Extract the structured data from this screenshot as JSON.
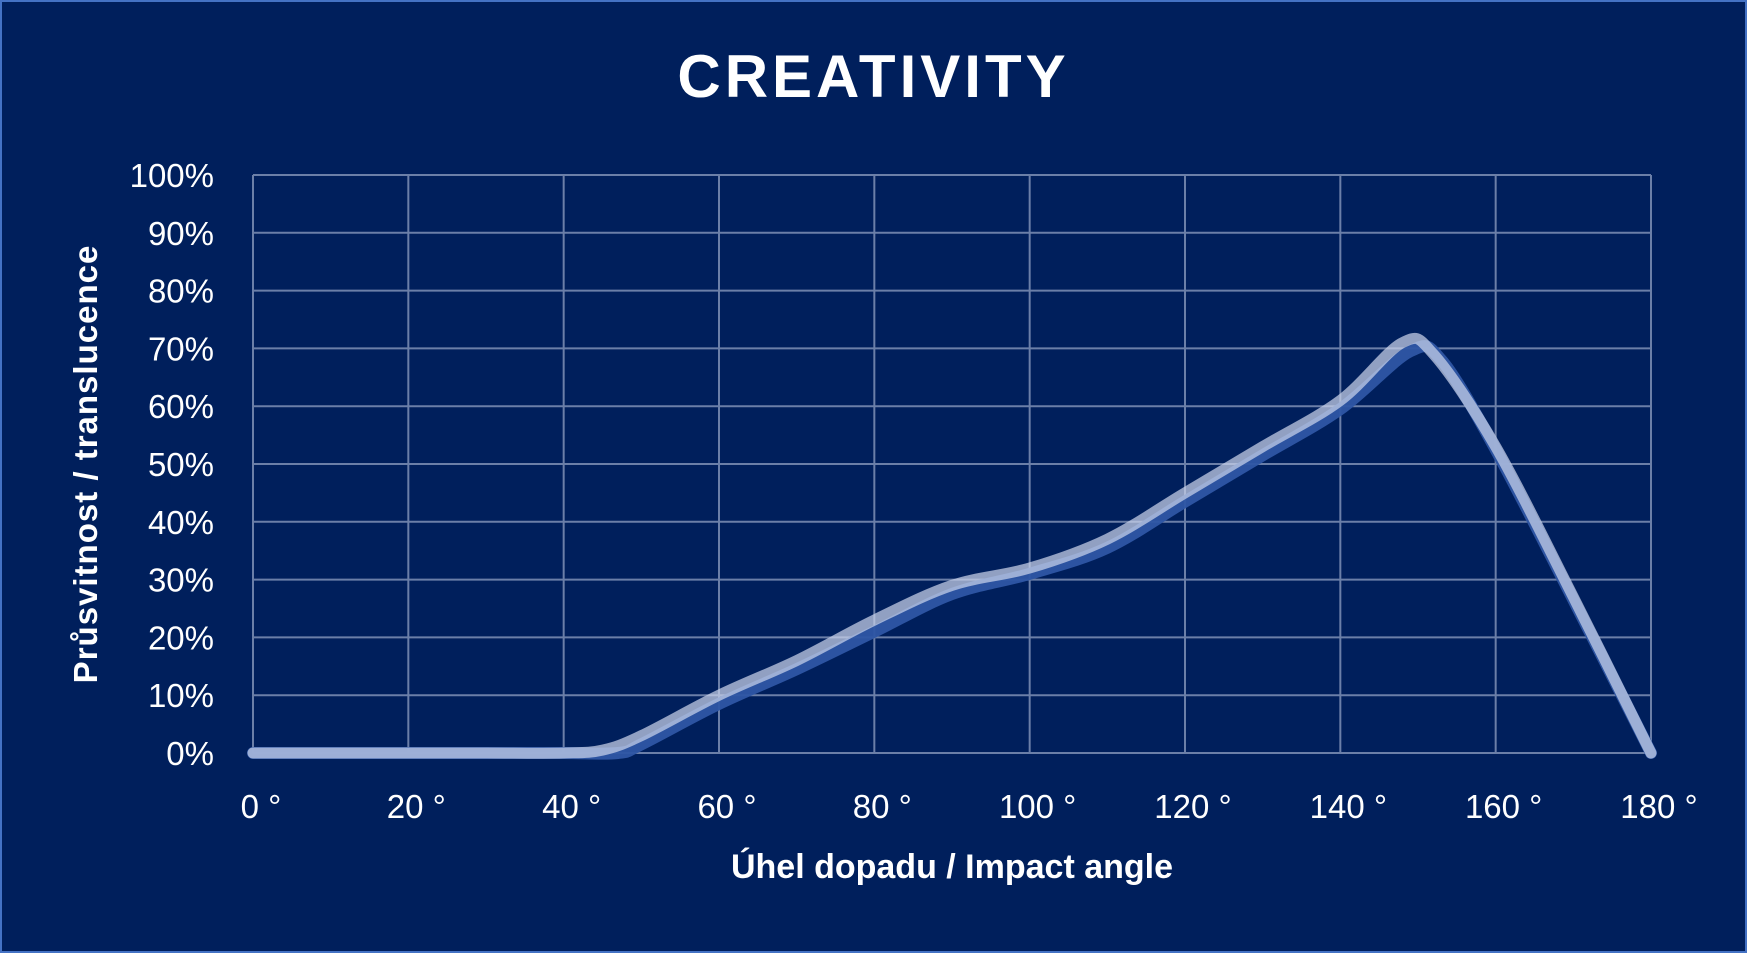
{
  "chart_data": {
    "type": "line",
    "title": "CREATIVITY",
    "xlabel": "Úhel dopadu / Impact angle",
    "ylabel": "Průsvitnost  / translucence",
    "x_ticks": [
      "0 °",
      "20 °",
      "40 °",
      "60 °",
      "80 °",
      "100 °",
      "120 °",
      "140 °",
      "160 °",
      "180 °"
    ],
    "y_ticks": [
      "0%",
      "10%",
      "20%",
      "30%",
      "40%",
      "50%",
      "60%",
      "70%",
      "80%",
      "90%",
      "100%"
    ],
    "xlim": [
      0,
      180
    ],
    "ylim": [
      0,
      100
    ],
    "grid": true,
    "legend": "none",
    "smooth": true,
    "series": [
      {
        "name": "translucence (light)",
        "color": "#c9d2ea",
        "x": [
          0,
          10,
          20,
          30,
          40,
          45,
          50,
          60,
          70,
          80,
          90,
          100,
          110,
          120,
          130,
          140,
          148,
          152,
          160,
          170,
          180
        ],
        "y": [
          0,
          0,
          0,
          0,
          0,
          0.5,
          3,
          10,
          16,
          23,
          29,
          32,
          37,
          45,
          53,
          61,
          71,
          69,
          53,
          27,
          0
        ]
      },
      {
        "name": "translucence (shadow)",
        "color": "#2e56a4",
        "x": [
          0,
          10,
          20,
          30,
          40,
          47,
          50,
          60,
          70,
          80,
          90,
          100,
          110,
          120,
          130,
          140,
          149,
          153,
          160,
          170,
          180
        ],
        "y": [
          0,
          0,
          0,
          0,
          0,
          0,
          1.5,
          8.5,
          14.5,
          21,
          27.5,
          31,
          35.5,
          43.5,
          51.5,
          59.5,
          69.5,
          68,
          52.5,
          26.5,
          0
        ]
      }
    ]
  },
  "colors": {
    "background": "#001f5c",
    "border": "#4472c4",
    "grid": "#6b7fa8",
    "text": "#ffffff"
  }
}
